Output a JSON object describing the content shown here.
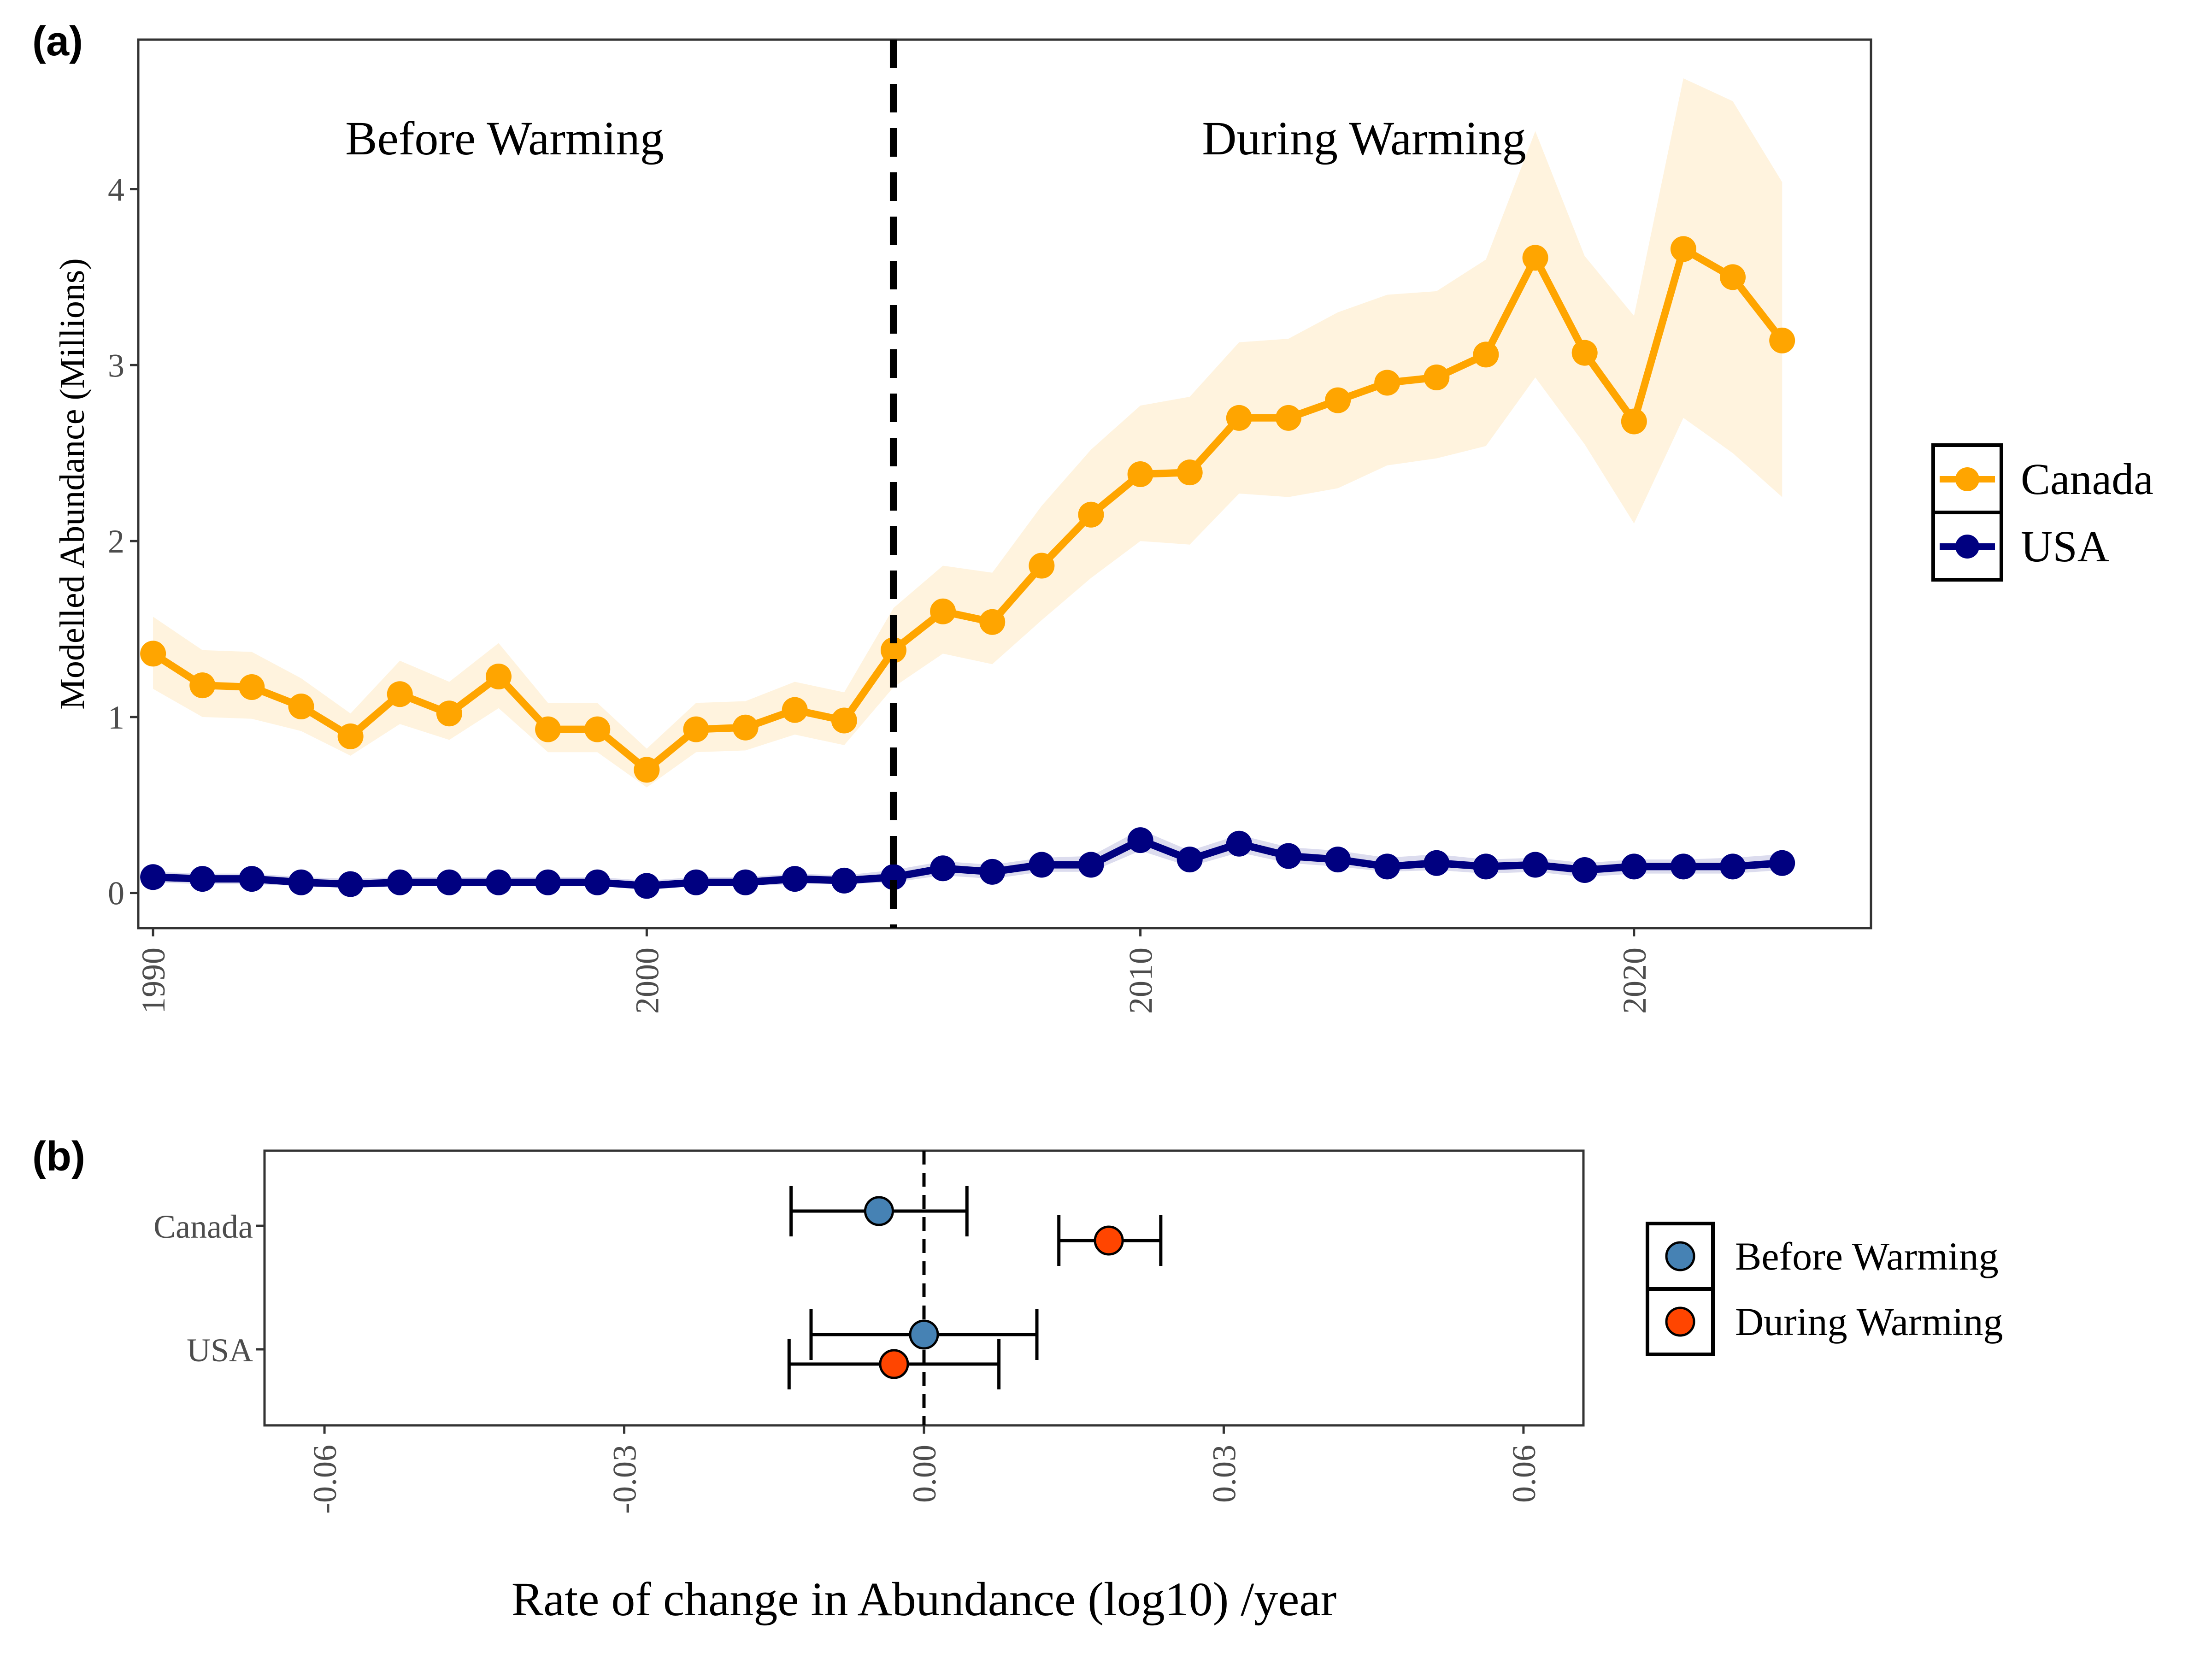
{
  "panels": {
    "a_tag": "(a)",
    "b_tag": "(b)"
  },
  "chart_data": [
    {
      "type": "line",
      "panel": "(a)",
      "ylabel": "Modelled Abundance (Millions)",
      "xlabel": "",
      "xlim": [
        1989.7,
        2024.8
      ],
      "ylim": [
        -0.2,
        4.85
      ],
      "x_ticks": [
        1990,
        2000,
        2010,
        2020
      ],
      "y_ticks": [
        0,
        1,
        2,
        3,
        4
      ],
      "vline_x": 2005,
      "region_labels": [
        "Before Warming",
        "During Warming"
      ],
      "legend_position": "right",
      "colors": {
        "Canada": "#FFA500",
        "Canada_ribbon": "#FFF3DE",
        "USA": "#000080",
        "USA_ribbon": "#DCDCEE"
      },
      "x": [
        1990,
        1991,
        1992,
        1993,
        1994,
        1995,
        1996,
        1997,
        1998,
        1999,
        2000,
        2001,
        2002,
        2003,
        2004,
        2005,
        2006,
        2007,
        2008,
        2009,
        2010,
        2011,
        2012,
        2013,
        2014,
        2015,
        2016,
        2017,
        2018,
        2019,
        2020,
        2021,
        2022,
        2023
      ],
      "series": [
        {
          "name": "Canada",
          "values": [
            1.36,
            1.18,
            1.17,
            1.06,
            0.89,
            1.13,
            1.02,
            1.23,
            0.93,
            0.93,
            0.7,
            0.93,
            0.94,
            1.04,
            0.98,
            1.38,
            1.6,
            1.54,
            1.86,
            2.15,
            2.38,
            2.39,
            2.7,
            2.7,
            2.8,
            2.9,
            2.93,
            3.06,
            3.61,
            3.07,
            2.68,
            3.66,
            3.5,
            3.14
          ],
          "lower": [
            1.16,
            1.0,
            0.99,
            0.92,
            0.78,
            0.96,
            0.87,
            1.05,
            0.8,
            0.8,
            0.6,
            0.8,
            0.81,
            0.9,
            0.84,
            1.17,
            1.36,
            1.3,
            1.55,
            1.79,
            2.0,
            1.98,
            2.27,
            2.25,
            2.3,
            2.43,
            2.47,
            2.54,
            2.93,
            2.55,
            2.1,
            2.7,
            2.5,
            2.25
          ],
          "upper": [
            1.57,
            1.38,
            1.37,
            1.22,
            1.02,
            1.32,
            1.2,
            1.42,
            1.08,
            1.08,
            0.82,
            1.08,
            1.09,
            1.2,
            1.14,
            1.62,
            1.86,
            1.82,
            2.2,
            2.52,
            2.77,
            2.82,
            3.13,
            3.15,
            3.3,
            3.4,
            3.42,
            3.6,
            4.33,
            3.62,
            3.28,
            4.63,
            4.5,
            4.04
          ]
        },
        {
          "name": "USA",
          "values": [
            0.09,
            0.08,
            0.08,
            0.06,
            0.05,
            0.06,
            0.06,
            0.06,
            0.06,
            0.06,
            0.04,
            0.06,
            0.06,
            0.08,
            0.07,
            0.09,
            0.14,
            0.12,
            0.16,
            0.16,
            0.3,
            0.19,
            0.28,
            0.21,
            0.19,
            0.15,
            0.17,
            0.15,
            0.16,
            0.13,
            0.15,
            0.15,
            0.15,
            0.17
          ],
          "lower": [
            0.06,
            0.05,
            0.05,
            0.04,
            0.03,
            0.04,
            0.04,
            0.04,
            0.04,
            0.04,
            0.02,
            0.04,
            0.04,
            0.05,
            0.05,
            0.06,
            0.1,
            0.08,
            0.12,
            0.12,
            0.24,
            0.15,
            0.23,
            0.17,
            0.15,
            0.12,
            0.13,
            0.11,
            0.12,
            0.09,
            0.11,
            0.11,
            0.11,
            0.13
          ],
          "upper": [
            0.12,
            0.11,
            0.11,
            0.09,
            0.08,
            0.09,
            0.09,
            0.09,
            0.09,
            0.09,
            0.07,
            0.09,
            0.09,
            0.11,
            0.1,
            0.13,
            0.18,
            0.16,
            0.2,
            0.21,
            0.36,
            0.24,
            0.33,
            0.26,
            0.24,
            0.2,
            0.22,
            0.19,
            0.2,
            0.17,
            0.19,
            0.19,
            0.2,
            0.22
          ]
        }
      ]
    },
    {
      "type": "scatter",
      "panel": "(b)",
      "xlabel": "Rate of change in Abundance (log10) /year",
      "ylabel": "",
      "xlim": [
        -0.066,
        0.066
      ],
      "x_ticks": [
        -0.06,
        -0.03,
        0.0,
        0.03,
        0.06
      ],
      "x_tick_labels": [
        "-0.06",
        "-0.03",
        "0.00",
        "0.03",
        "0.06"
      ],
      "categories": [
        "Canada",
        "USA"
      ],
      "vline_x": 0,
      "legend_position": "right",
      "colors": {
        "Before Warming": "#4682B4",
        "During Warming": "#FF4500"
      },
      "series": [
        {
          "name": "Before Warming",
          "points": [
            {
              "category": "Canada",
              "estimate": -0.0045,
              "lower": -0.0133,
              "upper": 0.0043
            },
            {
              "category": "USA",
              "estimate": 0.0,
              "lower": -0.0113,
              "upper": 0.0113
            }
          ]
        },
        {
          "name": "During Warming",
          "points": [
            {
              "category": "Canada",
              "estimate": 0.0185,
              "lower": 0.0135,
              "upper": 0.0237
            },
            {
              "category": "USA",
              "estimate": -0.003,
              "lower": -0.0135,
              "upper": 0.0075
            }
          ]
        }
      ]
    }
  ]
}
